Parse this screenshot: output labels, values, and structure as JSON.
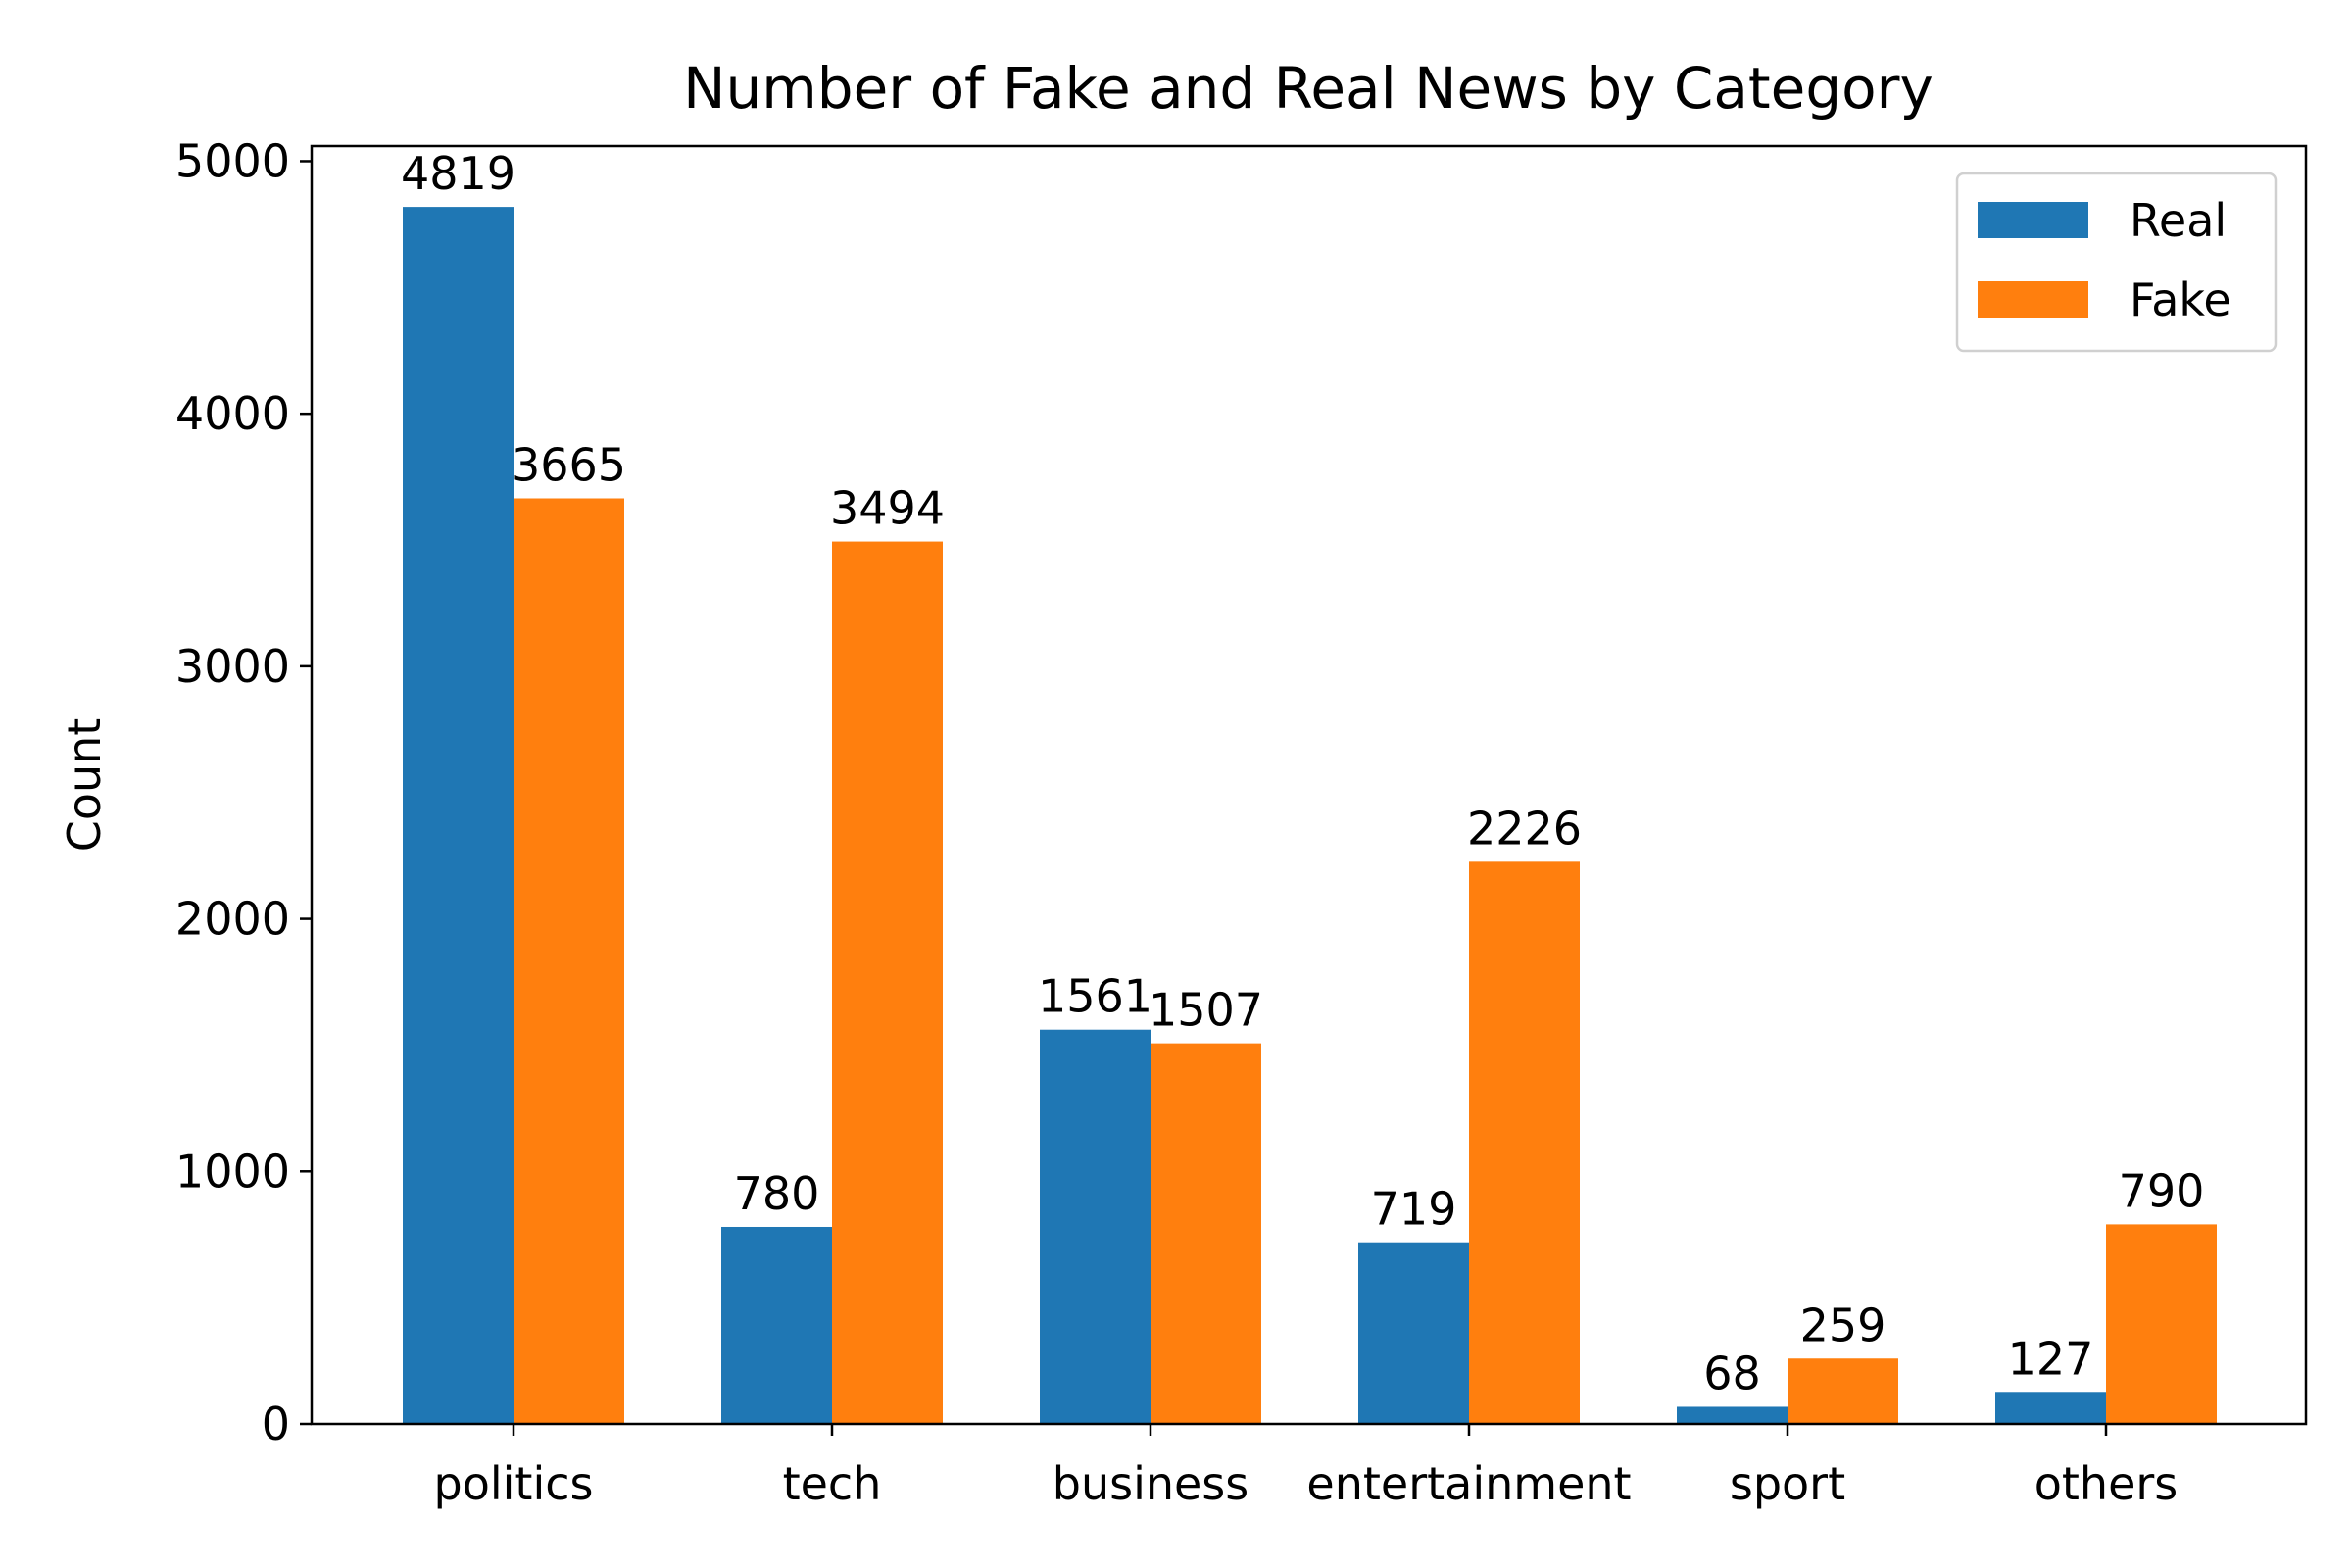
{
  "chart_data": {
    "type": "bar",
    "title": "Number of Fake and Real News by Category",
    "xlabel": "",
    "ylabel": "Count",
    "categories": [
      "politics",
      "tech",
      "business",
      "entertainment",
      "sport",
      "others"
    ],
    "series": [
      {
        "name": "Real",
        "color": "#1f77b4",
        "values": [
          4819,
          780,
          1561,
          719,
          68,
          127
        ]
      },
      {
        "name": "Fake",
        "color": "#ff7f0e",
        "values": [
          3665,
          3494,
          1507,
          2226,
          259,
          790
        ]
      }
    ],
    "ylim": [
      0,
      5060
    ],
    "yticks": [
      0,
      1000,
      2000,
      3000,
      4000,
      5000
    ],
    "grid": false,
    "legend_position": "top-right"
  }
}
